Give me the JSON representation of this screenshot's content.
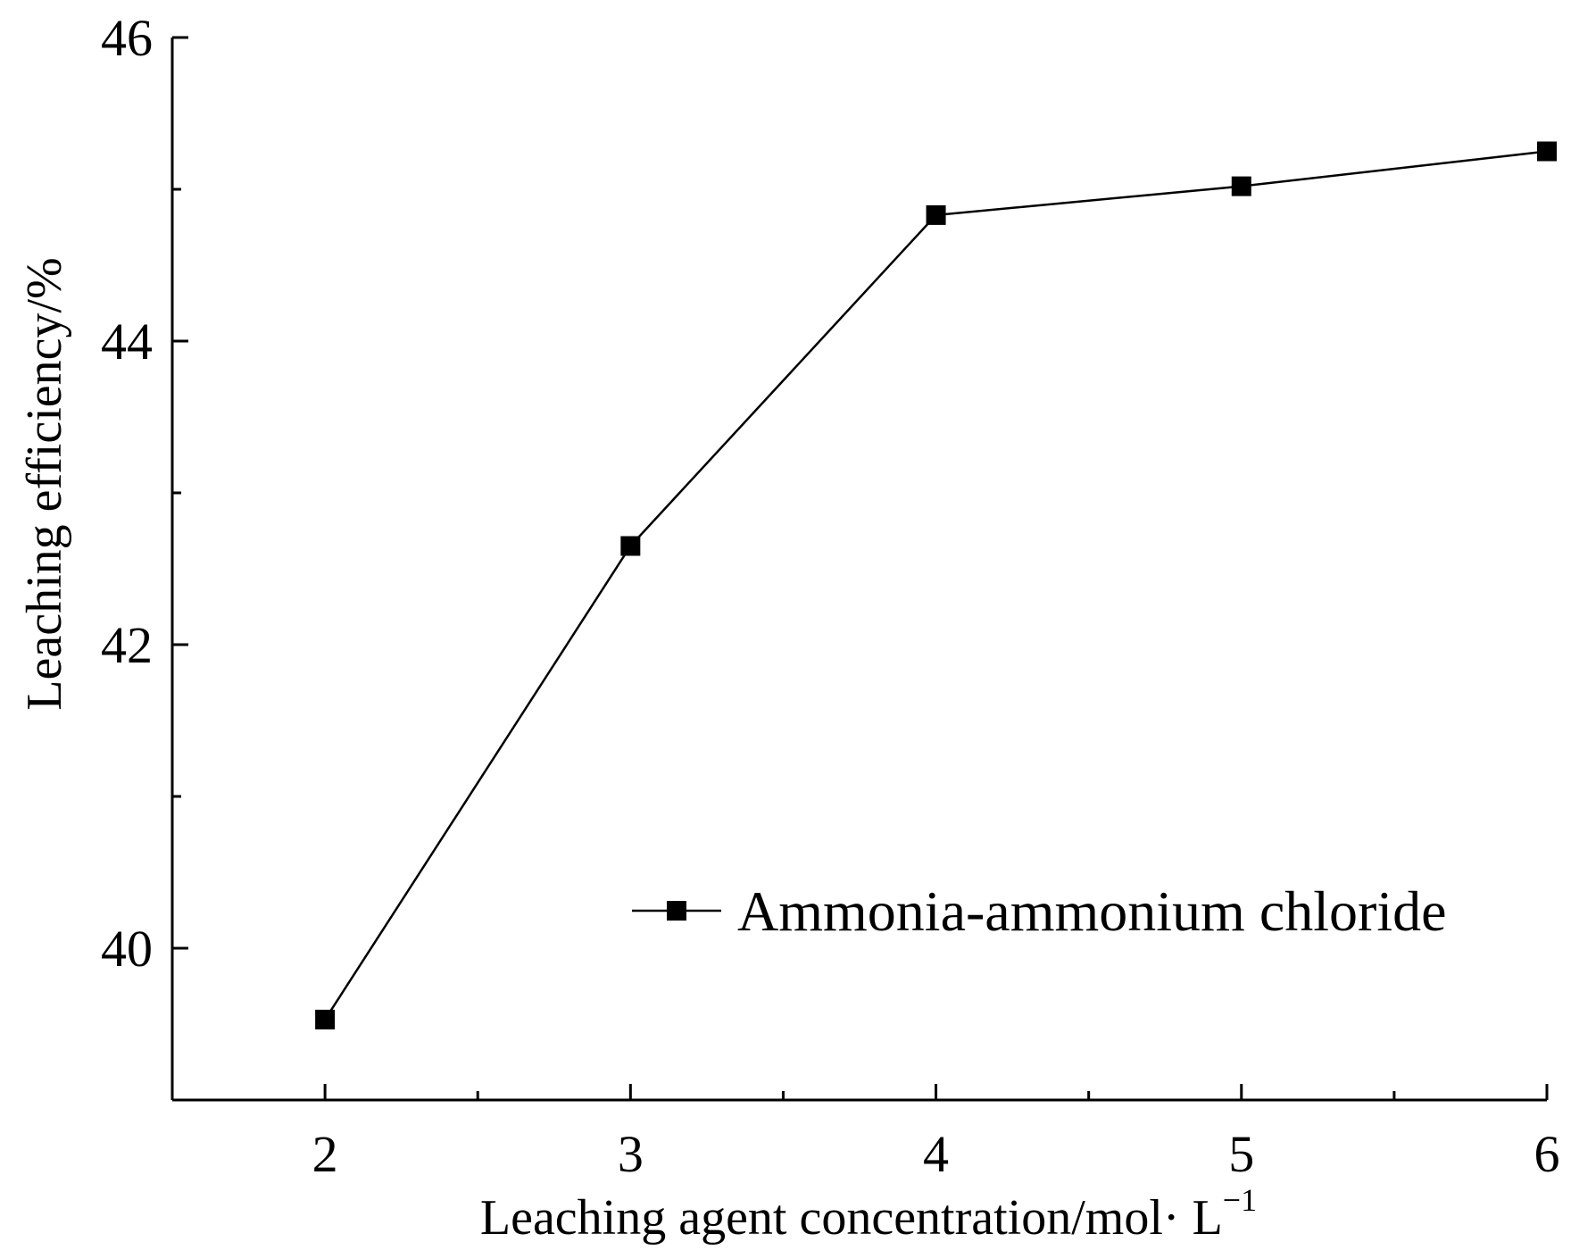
{
  "chart_data": {
    "type": "line",
    "title": "",
    "xlabel": "Leaching agent concentration/mol· L",
    "xlabel_superscript": "−1",
    "ylabel": "Leaching efficiency/%",
    "xlim": [
      1.5,
      6
    ],
    "ylim": [
      39,
      46
    ],
    "x_ticks": [
      2,
      3,
      4,
      5,
      6
    ],
    "x_tick_labels": [
      "2",
      "3",
      "4",
      "5",
      "6"
    ],
    "y_ticks": [
      40,
      42,
      44,
      46
    ],
    "y_tick_labels": [
      "40",
      "42",
      "44",
      "46"
    ],
    "grid": false,
    "legend_position": "center-right",
    "series": [
      {
        "name": "Ammonia-ammonium chloride",
        "marker": "square",
        "color": "#000000",
        "x": [
          2,
          3,
          4,
          5,
          6
        ],
        "values": [
          39.53,
          42.65,
          44.83,
          45.02,
          45.25
        ]
      }
    ]
  }
}
